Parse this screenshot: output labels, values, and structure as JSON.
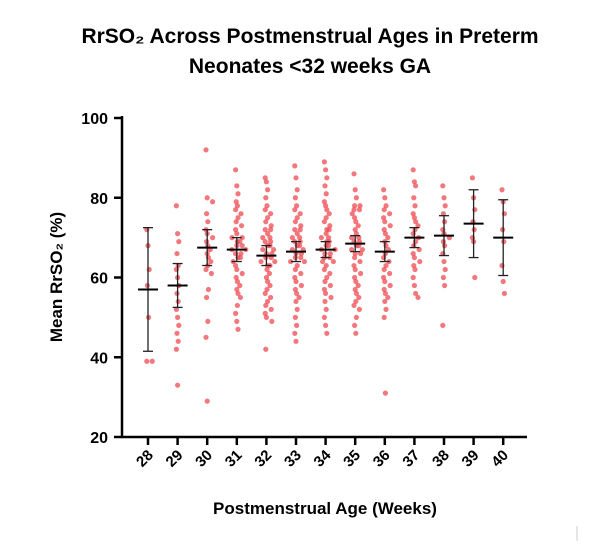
{
  "chart_data": {
    "type": "dot",
    "title": "RrSO₂ Across Postmenstrual Ages in Preterm Neonates <32 weeks GA",
    "x_label": "Postmenstrual Age (Weeks)",
    "y_label": "Mean RrSO₂ (%)",
    "categories": [
      "28",
      "29",
      "30",
      "31",
      "32",
      "33",
      "34",
      "35",
      "36",
      "37",
      "38",
      "39",
      "40"
    ],
    "points": [
      [
        72,
        68,
        62,
        58,
        50,
        39,
        39
      ],
      [
        78,
        71,
        69,
        66,
        63,
        62,
        60,
        58,
        56,
        54,
        52,
        50,
        48,
        46,
        44,
        42,
        33
      ],
      [
        92,
        80,
        79,
        76,
        74,
        72,
        71,
        70,
        69,
        68,
        67,
        66,
        65,
        64,
        63,
        62,
        61,
        57,
        55,
        49,
        45,
        29
      ],
      [
        87,
        83,
        81,
        79,
        78,
        77,
        76,
        75,
        74,
        73,
        72,
        71,
        70,
        70,
        69,
        69,
        68,
        68,
        67,
        67,
        66,
        66,
        65,
        65,
        64,
        63,
        62,
        61,
        60,
        59,
        58,
        57,
        56,
        55,
        53,
        51,
        49,
        47
      ],
      [
        85,
        84,
        82,
        80,
        78,
        77,
        76,
        75,
        74,
        73,
        72,
        72,
        71,
        70,
        70,
        69,
        69,
        68,
        68,
        67,
        67,
        66,
        66,
        65,
        65,
        64,
        64,
        63,
        63,
        62,
        61,
        60,
        59,
        58,
        57,
        56,
        55,
        54,
        53,
        52,
        51,
        50,
        49,
        42
      ],
      [
        88,
        85,
        82,
        80,
        78,
        77,
        76,
        75,
        74,
        73,
        72,
        72,
        71,
        70,
        70,
        69,
        69,
        68,
        68,
        67,
        67,
        66,
        66,
        65,
        65,
        64,
        64,
        63,
        62,
        61,
        60,
        59,
        58,
        57,
        56,
        55,
        54,
        52,
        50,
        48,
        46,
        44
      ],
      [
        89,
        87,
        85,
        83,
        81,
        79,
        78,
        77,
        76,
        75,
        74,
        73,
        72,
        72,
        71,
        70,
        70,
        69,
        69,
        68,
        68,
        67,
        67,
        66,
        66,
        65,
        65,
        64,
        64,
        63,
        62,
        61,
        60,
        59,
        58,
        57,
        56,
        55,
        54,
        52,
        50,
        48,
        46
      ],
      [
        86,
        82,
        80,
        78,
        78,
        77,
        77,
        76,
        75,
        74,
        73,
        72,
        71,
        70,
        70,
        69,
        69,
        68,
        68,
        67,
        67,
        66,
        66,
        65,
        64,
        63,
        62,
        61,
        60,
        59,
        58,
        57,
        56,
        55,
        54,
        53,
        52,
        50,
        48,
        46
      ],
      [
        82,
        80,
        78,
        77,
        76,
        75,
        74,
        73,
        72,
        71,
        70,
        69,
        68,
        67,
        66,
        65,
        64,
        63,
        62,
        61,
        60,
        59,
        58,
        57,
        56,
        55,
        54,
        52,
        50,
        31
      ],
      [
        87,
        84,
        83,
        80,
        78,
        76,
        75,
        74,
        73,
        72,
        71,
        70,
        69,
        68,
        67,
        66,
        65,
        64,
        63,
        62,
        60,
        58,
        56,
        55
      ],
      [
        83,
        80,
        78,
        76,
        74,
        72,
        71,
        70,
        69,
        68,
        66,
        64,
        62,
        60,
        58,
        48
      ],
      [
        85,
        80,
        77,
        74,
        72,
        70,
        69,
        60
      ],
      [
        82,
        79,
        76,
        72,
        69,
        63,
        59,
        56
      ]
    ],
    "means": [
      57,
      58,
      67.5,
      67,
      65.5,
      66.5,
      67,
      68.5,
      66.5,
      70,
      70.5,
      73.5,
      70
    ],
    "errors": [
      15.5,
      5.5,
      4.5,
      3,
      2.5,
      2.5,
      2,
      2,
      2.5,
      2.5,
      5,
      8.5,
      9.5
    ],
    "color": "#ef4b53",
    "ylim": [
      20,
      100
    ],
    "yticks": [
      20,
      40,
      60,
      80,
      100
    ]
  }
}
